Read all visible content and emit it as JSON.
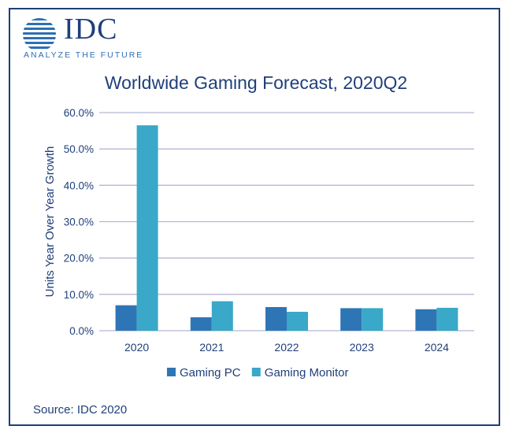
{
  "logo": {
    "name": "IDC",
    "tagline": "ANALYZE THE FUTURE"
  },
  "source": "Source: IDC 2020",
  "colors": {
    "gaming_pc": "#2e75b6",
    "gaming_monitor": "#3aa8c8",
    "text": "#1f3f7a",
    "grid": "#b4b8d4"
  },
  "chart_data": {
    "type": "bar",
    "title": "Worldwide Gaming Forecast, 2020Q2",
    "xlabel": "",
    "ylabel": "Units Year Over Year Growth",
    "ylim": [
      0,
      60
    ],
    "yticks": [
      "0.0%",
      "10.0%",
      "20.0%",
      "30.0%",
      "40.0%",
      "50.0%",
      "60.0%"
    ],
    "ytick_values": [
      0,
      10,
      20,
      30,
      40,
      50,
      60
    ],
    "grid": true,
    "legend_position": "bottom",
    "categories": [
      "2020",
      "2021",
      "2022",
      "2023",
      "2024"
    ],
    "series": [
      {
        "name": "Gaming PC",
        "values": [
          7.0,
          3.7,
          6.5,
          6.2,
          5.9
        ]
      },
      {
        "name": "Gaming Monitor",
        "values": [
          56.5,
          8.1,
          5.2,
          6.2,
          6.3
        ]
      }
    ]
  }
}
